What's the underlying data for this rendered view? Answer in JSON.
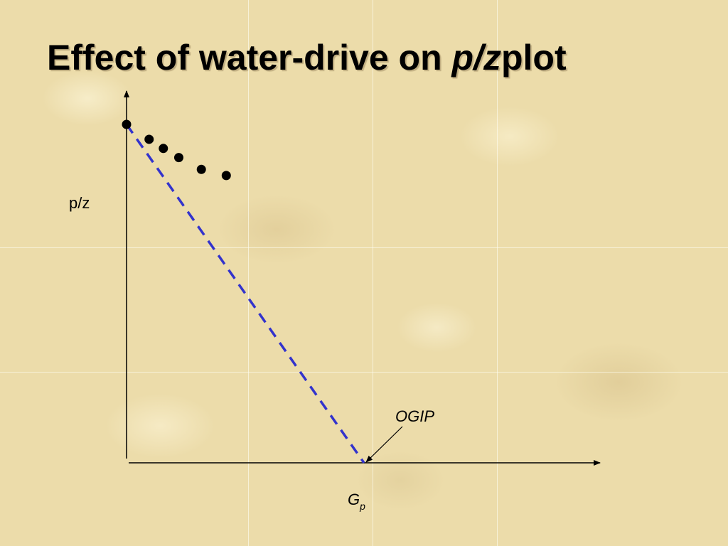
{
  "title": {
    "prefix": "Effect of water-drive on ",
    "italic": "p/z",
    "suffix": "plot"
  },
  "chart_data": {
    "type": "scatter",
    "ylabel": "p/z",
    "xlabel": "G",
    "xlabel_subscript": "p",
    "xlim": [
      0,
      1.0
    ],
    "ylim": [
      0,
      1.0
    ],
    "grid": false,
    "series": [
      {
        "type": "scatter",
        "x": [
          0.0,
          0.095,
          0.155,
          0.22,
          0.315,
          0.42
        ],
        "y": [
          1.0,
          0.956,
          0.929,
          0.902,
          0.867,
          0.849
        ]
      },
      {
        "type": "line",
        "style": "dashed",
        "x": [
          0.0,
          1.0
        ],
        "y": [
          1.0,
          0.0
        ]
      }
    ],
    "annotations": [
      {
        "text": "OGIP",
        "x": 1.0,
        "y": 0.0
      }
    ],
    "colors": {
      "line": "#3333cc",
      "points": "#000000",
      "axes": "#000000"
    }
  }
}
